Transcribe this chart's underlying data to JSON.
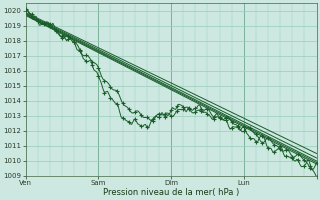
{
  "xlabel": "Pression niveau de la mer( hPa )",
  "ylim": [
    1009,
    1020.5
  ],
  "xlim": [
    0,
    96
  ],
  "yticks": [
    1009,
    1010,
    1011,
    1012,
    1013,
    1014,
    1015,
    1016,
    1017,
    1018,
    1019,
    1020
  ],
  "xtick_positions": [
    0,
    24,
    48,
    72,
    96
  ],
  "xtick_labels": [
    "Ven",
    "Sam",
    "Dim",
    "Lun",
    ""
  ],
  "bg_color": "#cce8e0",
  "grid_color": "#99ccbb",
  "line_color": "#1a5c2a",
  "figsize": [
    3.2,
    2.0
  ],
  "dpi": 100
}
